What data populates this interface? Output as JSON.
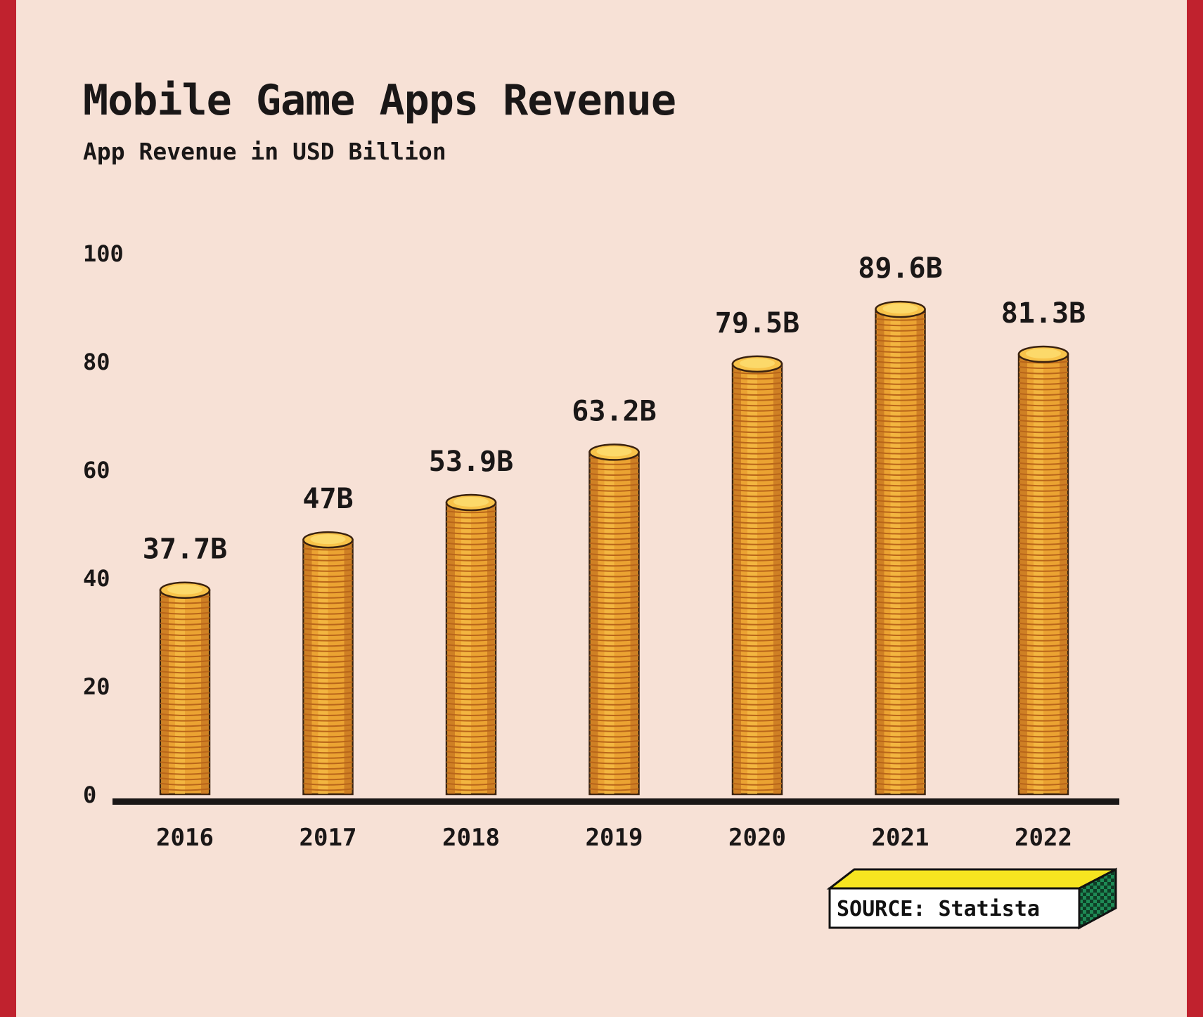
{
  "chart_data": {
    "type": "bar",
    "title": "Mobile Game Apps Revenue",
    "subtitle": "App Revenue in USD Billion",
    "categories": [
      "2016",
      "2017",
      "2018",
      "2019",
      "2020",
      "2021",
      "2022"
    ],
    "values": [
      37.7,
      47,
      53.9,
      63.2,
      79.5,
      89.6,
      81.3
    ],
    "data_labels": [
      "37.7B",
      "47B",
      "53.9B",
      "63.2B",
      "79.5B",
      "89.6B",
      "81.3B"
    ],
    "yticks": [
      0,
      20,
      40,
      60,
      80,
      100
    ],
    "ylim": [
      0,
      100
    ],
    "xlabel": "",
    "ylabel": "",
    "grid": false,
    "legend": "none"
  },
  "source": {
    "label": "SOURCE: Statista"
  },
  "colors": {
    "background": "#f7e1d6",
    "frame": "#c0222e",
    "coin_light": "#f8c34a",
    "coin_mid": "#eba332",
    "coin_dark": "#b8651a",
    "coin_outline": "#3a2210",
    "axis": "#1a1717",
    "source_box_top": "#f6e520",
    "source_box_side": "#1e8a55"
  }
}
